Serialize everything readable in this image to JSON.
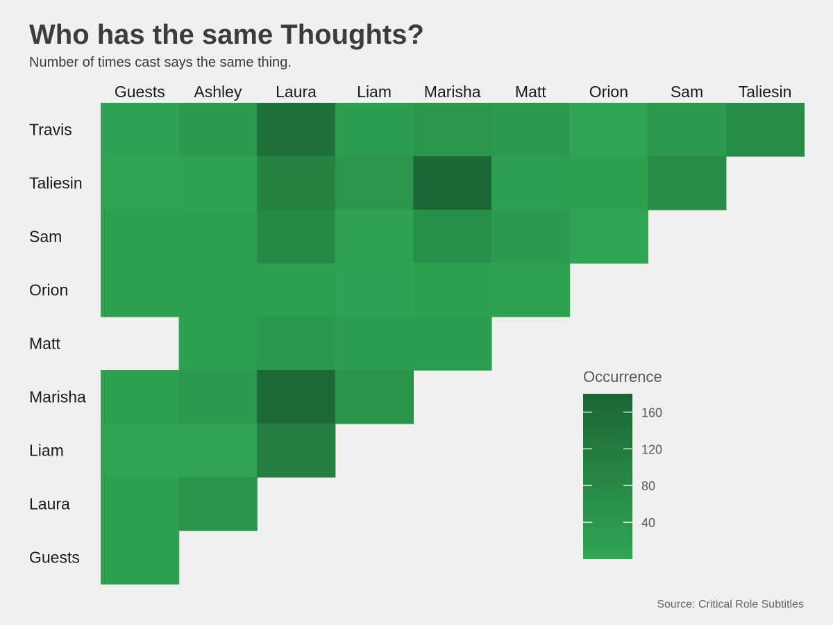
{
  "chart_data": {
    "type": "heatmap",
    "title": "Who has the same Thoughts?",
    "subtitle": "Number of times cast says the same thing.",
    "caption": "Source: Critical Role Subtitles",
    "x_categories": [
      "Guests",
      "Ashley",
      "Laura",
      "Liam",
      "Marisha",
      "Matt",
      "Orion",
      "Sam",
      "Taliesin"
    ],
    "y_categories": [
      "Travis",
      "Taliesin",
      "Sam",
      "Orion",
      "Matt",
      "Marisha",
      "Liam",
      "Laura",
      "Guests"
    ],
    "values": [
      [
        8,
        30,
        150,
        25,
        45,
        35,
        5,
        35,
        70
      ],
      [
        5,
        10,
        100,
        45,
        175,
        20,
        15,
        75,
        null
      ],
      [
        15,
        15,
        80,
        10,
        60,
        30,
        5,
        null,
        null
      ],
      [
        15,
        15,
        15,
        8,
        15,
        10,
        null,
        null,
        null
      ],
      [
        null,
        15,
        40,
        25,
        25,
        null,
        null,
        null,
        null
      ],
      [
        15,
        35,
        170,
        50,
        null,
        null,
        null,
        null,
        null
      ],
      [
        5,
        5,
        110,
        null,
        null,
        null,
        null,
        null,
        null
      ],
      [
        15,
        50,
        null,
        null,
        null,
        null,
        null,
        null,
        null
      ],
      [
        15,
        null,
        null,
        null,
        null,
        null,
        null,
        null,
        null
      ]
    ],
    "legend": {
      "title": "Occurrence",
      "ticks": [
        40,
        80,
        120,
        160
      ],
      "range": [
        0,
        180
      ],
      "low_color": "#30a654",
      "high_color": "#1c6535",
      "placement": "right"
    },
    "grid": false
  }
}
